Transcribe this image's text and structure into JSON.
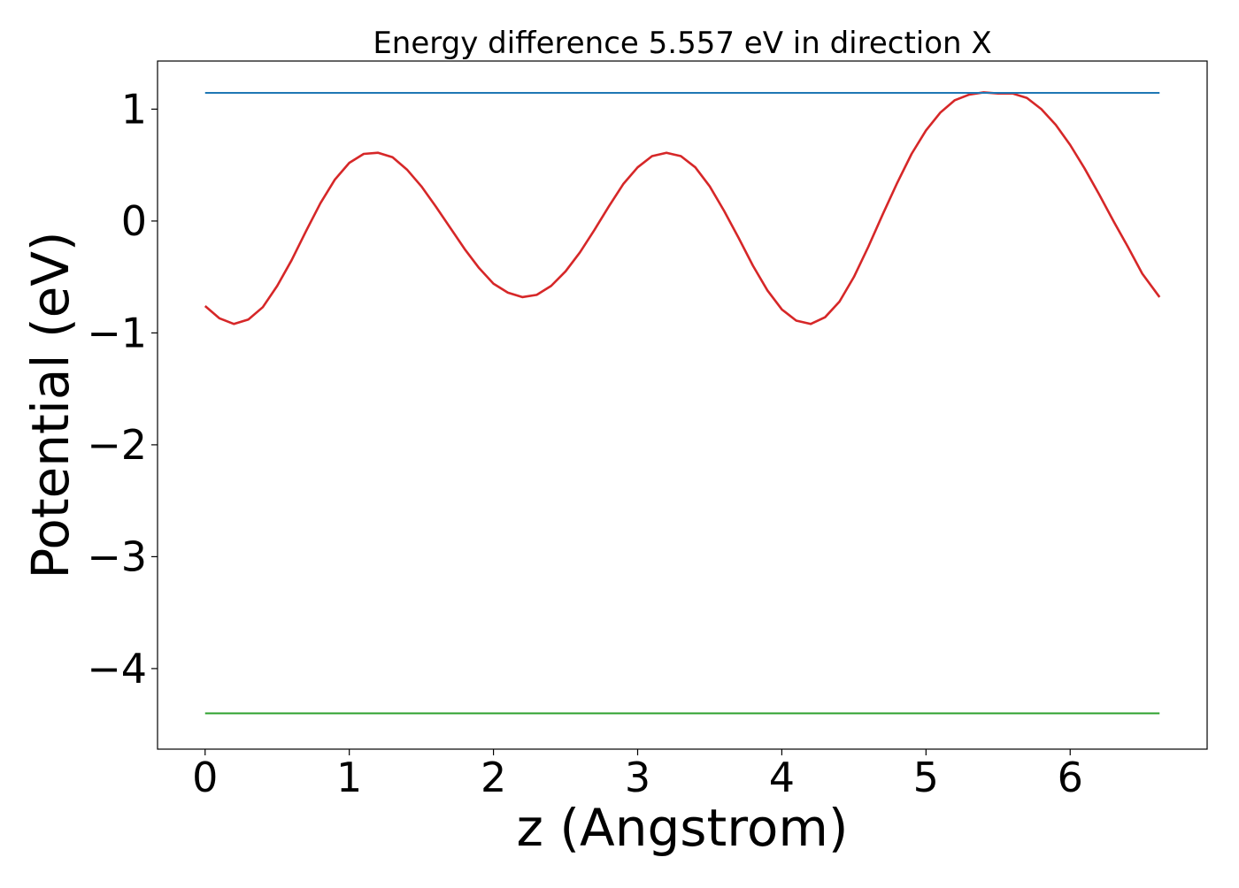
{
  "chart_data": {
    "type": "line",
    "title": "Energy difference 5.557 eV in direction X",
    "xlabel": "z (Angstrom)",
    "ylabel": "Potential (eV)",
    "xlim": [
      -0.33,
      6.95
    ],
    "ylim": [
      -4.72,
      1.43
    ],
    "x_ticks": [
      0,
      1,
      2,
      3,
      4,
      5,
      6
    ],
    "x_tick_labels": [
      "0",
      "1",
      "2",
      "3",
      "4",
      "5",
      "6"
    ],
    "y_ticks": [
      1,
      0,
      -1,
      -2,
      -3,
      -4
    ],
    "y_tick_labels": [
      "1",
      "0",
      "−1",
      "−2",
      "−3",
      "−4"
    ],
    "grid": false,
    "legend": "none",
    "series": [
      {
        "color": "#d62728",
        "style": "line",
        "x": [
          0,
          0.1,
          0.2,
          0.3,
          0.4,
          0.5,
          0.6,
          0.7,
          0.8,
          0.9,
          1.0,
          1.1,
          1.2,
          1.3,
          1.4,
          1.5,
          1.6,
          1.7,
          1.8,
          1.9,
          2.0,
          2.1,
          2.2,
          2.3,
          2.4,
          2.5,
          2.6,
          2.7,
          2.8,
          2.9,
          3.0,
          3.1,
          3.2,
          3.3,
          3.4,
          3.5,
          3.6,
          3.7,
          3.8,
          3.9,
          4.0,
          4.1,
          4.2,
          4.3,
          4.4,
          4.5,
          4.6,
          4.7,
          4.8,
          4.9,
          5.0,
          5.1,
          5.2,
          5.3,
          5.4,
          5.5,
          5.6,
          5.7,
          5.8,
          5.9,
          6.0,
          6.1,
          6.2,
          6.3,
          6.4,
          6.5,
          6.62
        ],
        "y": [
          -0.76,
          -0.87,
          -0.92,
          -0.88,
          -0.77,
          -0.58,
          -0.35,
          -0.09,
          0.16,
          0.37,
          0.52,
          0.6,
          0.61,
          0.57,
          0.46,
          0.31,
          0.13,
          -0.06,
          -0.25,
          -0.42,
          -0.56,
          -0.64,
          -0.68,
          -0.66,
          -0.58,
          -0.45,
          -0.28,
          -0.08,
          0.13,
          0.33,
          0.48,
          0.58,
          0.61,
          0.58,
          0.48,
          0.31,
          0.09,
          -0.15,
          -0.4,
          -0.62,
          -0.79,
          -0.89,
          -0.92,
          -0.86,
          -0.72,
          -0.5,
          -0.23,
          0.06,
          0.34,
          0.6,
          0.81,
          0.97,
          1.08,
          1.13,
          1.15,
          1.14,
          1.14,
          1.1,
          1.0,
          0.86,
          0.68,
          0.47,
          0.24,
          0.0,
          -0.23,
          -0.47,
          -0.68
        ]
      },
      {
        "color": "#1f77b4",
        "style": "line",
        "x": [
          0,
          6.62
        ],
        "y": [
          1.145,
          1.145
        ]
      },
      {
        "color": "#2ca02c",
        "style": "line",
        "x": [
          0,
          6.62
        ],
        "y": [
          -4.4,
          -4.4
        ]
      }
    ]
  }
}
